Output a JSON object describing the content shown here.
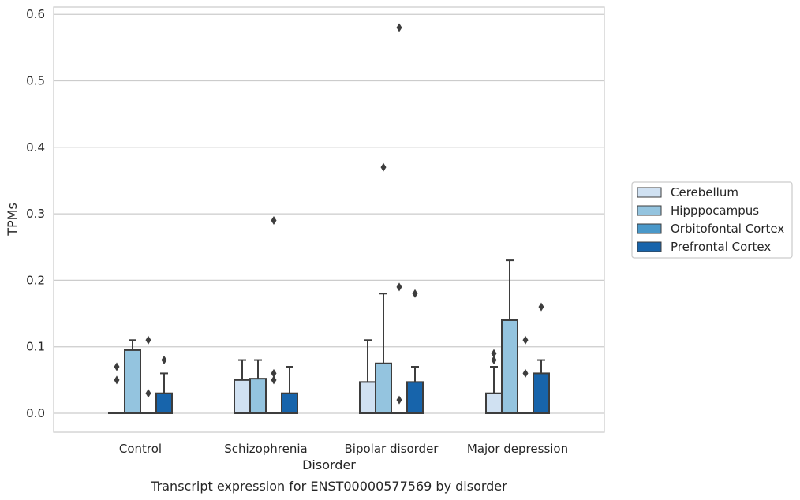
{
  "chart_data": {
    "type": "box",
    "title": "",
    "caption": "Transcript expression for ENST00000577569 by disorder",
    "xlabel": "Disorder",
    "ylabel": "TPMs",
    "ylim": [
      -0.03,
      0.61
    ],
    "yticks": [
      "0.0",
      "0.1",
      "0.2",
      "0.3",
      "0.4",
      "0.5",
      "0.6"
    ],
    "categories": [
      "Control",
      "Schizophrenia",
      "Bipolar disorder",
      "Major depression"
    ],
    "grid": "horizontal",
    "legend_position": "right",
    "series": [
      {
        "name": "Cerebellum",
        "color": "#d0e1f2",
        "boxes": [
          {
            "q1": 0.0,
            "median": 0.0,
            "q3": 0.0,
            "whisker_low": 0.0,
            "whisker_high": 0.0,
            "outliers": [
              0.05,
              0.07
            ]
          },
          {
            "q1": 0.0,
            "median": 0.0,
            "q3": 0.05,
            "whisker_low": 0.0,
            "whisker_high": 0.08,
            "outliers": []
          },
          {
            "q1": 0.0,
            "median": 0.0,
            "q3": 0.047,
            "whisker_low": 0.0,
            "whisker_high": 0.11,
            "outliers": []
          },
          {
            "q1": 0.0,
            "median": 0.0,
            "q3": 0.03,
            "whisker_low": 0.0,
            "whisker_high": 0.07,
            "outliers": [
              0.08,
              0.09
            ]
          }
        ]
      },
      {
        "name": "Hipppocampus",
        "color": "#94c4df",
        "boxes": [
          {
            "q1": 0.0,
            "median": 0.0,
            "q3": 0.095,
            "whisker_low": 0.0,
            "whisker_high": 0.11,
            "outliers": []
          },
          {
            "q1": 0.0,
            "median": 0.0,
            "q3": 0.052,
            "whisker_low": 0.0,
            "whisker_high": 0.08,
            "outliers": []
          },
          {
            "q1": 0.0,
            "median": 0.0,
            "q3": 0.075,
            "whisker_low": 0.0,
            "whisker_high": 0.18,
            "outliers": [
              0.37
            ]
          },
          {
            "q1": 0.0,
            "median": 0.0,
            "q3": 0.14,
            "whisker_low": 0.0,
            "whisker_high": 0.23,
            "outliers": []
          }
        ]
      },
      {
        "name": "Orbitofontal Cortex",
        "color": "#4a98c9",
        "boxes": [
          {
            "q1": 0.0,
            "median": 0.0,
            "q3": 0.0,
            "whisker_low": 0.0,
            "whisker_high": 0.0,
            "outliers": [
              0.03,
              0.11
            ]
          },
          {
            "q1": 0.0,
            "median": 0.0,
            "q3": 0.0,
            "whisker_low": 0.0,
            "whisker_high": 0.0,
            "outliers": [
              0.05,
              0.06,
              0.29
            ]
          },
          {
            "q1": 0.0,
            "median": 0.0,
            "q3": 0.0,
            "whisker_low": 0.0,
            "whisker_high": 0.0,
            "outliers": [
              0.02,
              0.19,
              0.58
            ]
          },
          {
            "q1": 0.0,
            "median": 0.0,
            "q3": 0.0,
            "whisker_low": 0.0,
            "whisker_high": 0.0,
            "outliers": [
              0.06,
              0.11
            ]
          }
        ]
      },
      {
        "name": "Prefrontal Cortex",
        "color": "#1764ab",
        "boxes": [
          {
            "q1": 0.0,
            "median": 0.0,
            "q3": 0.03,
            "whisker_low": 0.0,
            "whisker_high": 0.06,
            "outliers": [
              0.08
            ]
          },
          {
            "q1": 0.0,
            "median": 0.0,
            "q3": 0.03,
            "whisker_low": 0.0,
            "whisker_high": 0.07,
            "outliers": []
          },
          {
            "q1": 0.0,
            "median": 0.0,
            "q3": 0.047,
            "whisker_low": 0.0,
            "whisker_high": 0.07,
            "outliers": [
              0.18
            ]
          },
          {
            "q1": 0.0,
            "median": 0.0,
            "q3": 0.06,
            "whisker_low": 0.0,
            "whisker_high": 0.08,
            "outliers": [
              0.16
            ]
          }
        ]
      }
    ]
  }
}
